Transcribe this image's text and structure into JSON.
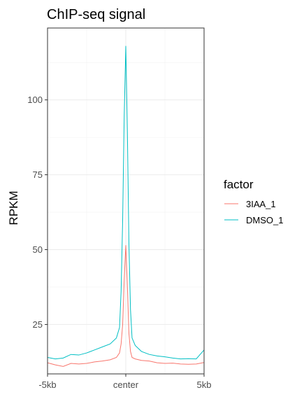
{
  "chart_data": {
    "type": "line",
    "title": "ChIP-seq signal",
    "xlabel": "",
    "ylabel": "RPKM",
    "x_tick_labels": [
      "-5kb",
      "center",
      "5kb"
    ],
    "x_tick_positions": [
      -5,
      0,
      5
    ],
    "y_ticks": [
      25,
      50,
      75,
      100
    ],
    "xlim": [
      -5,
      5
    ],
    "ylim": [
      8.5,
      124
    ],
    "grid": true,
    "legend": {
      "title": "factor",
      "placement": "right"
    },
    "x": [
      -5,
      -4.5,
      -4,
      -3.5,
      -3,
      -2.5,
      -2,
      -1.5,
      -1,
      -0.6,
      -0.4,
      -0.3,
      -0.2,
      -0.1,
      0,
      0.1,
      0.2,
      0.3,
      0.4,
      0.6,
      1,
      1.5,
      2,
      2.5,
      3,
      3.5,
      4,
      4.5,
      5
    ],
    "series": [
      {
        "name": "3IAA_1",
        "color": "#F8766D",
        "values": [
          12.2,
          11.5,
          11.0,
          12.0,
          11.8,
          12.0,
          12.5,
          12.8,
          13.2,
          14.0,
          15.5,
          18.5,
          25.0,
          40.0,
          51.5,
          38.0,
          22.0,
          16.0,
          14.0,
          13.5,
          13.0,
          12.8,
          12.2,
          12.0,
          12.1,
          11.8,
          11.7,
          11.8,
          12.3
        ]
      },
      {
        "name": "DMSO_1",
        "color": "#00BFC4",
        "values": [
          14.0,
          13.5,
          13.8,
          15.0,
          14.8,
          15.5,
          16.5,
          17.5,
          18.5,
          20.5,
          24.0,
          36.0,
          60.0,
          95.0,
          118.0,
          90.0,
          52.0,
          30.0,
          20.5,
          18.0,
          16.0,
          15.0,
          14.5,
          14.2,
          13.8,
          13.5,
          13.6,
          13.5,
          16.5
        ]
      }
    ]
  }
}
